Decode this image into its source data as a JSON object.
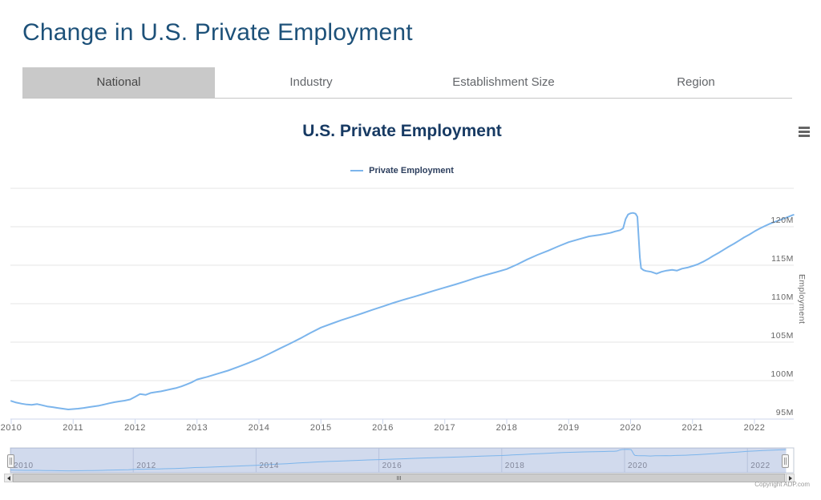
{
  "page": {
    "title": "Change in U.S. Private Employment"
  },
  "tabs": {
    "items": [
      {
        "label": "National",
        "selected": true
      },
      {
        "label": "Industry",
        "selected": false
      },
      {
        "label": "Establishment Size",
        "selected": false
      },
      {
        "label": "Region",
        "selected": false
      }
    ]
  },
  "chart": {
    "title": "U.S. Private Employment",
    "legend": {
      "series_label": "Private Employment"
    },
    "y_axis_title": "Employment",
    "credits": "Copyright ADP.com",
    "icons": {
      "context_menu": "hamburger-icon",
      "scroll_left": "triangle-left-icon",
      "scroll_right": "triangle-right-icon",
      "navigator_handles": "drag-handle-icon"
    }
  },
  "colors": {
    "series": "#7cb5ec",
    "page_title": "#1d5179",
    "chart_title": "#173a63",
    "selected_tab_bg": "#c9c9c9",
    "gridline": "#e6e6e6",
    "axis_line": "#ccd6eb",
    "navigator_mask": "rgba(102,133,194,0.3)"
  },
  "chart_data": {
    "type": "line",
    "title": "U.S. Private Employment",
    "xlabel": "",
    "ylabel": "Employment",
    "unit": "millions of jobs",
    "xlim": [
      2010,
      2022.63
    ],
    "ylim": [
      95,
      125
    ],
    "grid": true,
    "legend_position": "top-center",
    "y_gridlines": [
      95,
      100,
      105,
      110,
      115,
      120,
      125
    ],
    "y_ticks": [
      {
        "value": 95,
        "label": "95M"
      },
      {
        "value": 100,
        "label": "100M"
      },
      {
        "value": 105,
        "label": "105M"
      },
      {
        "value": 110,
        "label": "110M"
      },
      {
        "value": 115,
        "label": "115M"
      },
      {
        "value": 120,
        "label": "120M"
      }
    ],
    "x_ticks": [
      {
        "value": 2010,
        "label": "2010"
      },
      {
        "value": 2011,
        "label": "2011"
      },
      {
        "value": 2012,
        "label": "2012"
      },
      {
        "value": 2013,
        "label": "2013"
      },
      {
        "value": 2014,
        "label": "2014"
      },
      {
        "value": 2015,
        "label": "2015"
      },
      {
        "value": 2016,
        "label": "2016"
      },
      {
        "value": 2017,
        "label": "2017"
      },
      {
        "value": 2018,
        "label": "2018"
      },
      {
        "value": 2019,
        "label": "2019"
      },
      {
        "value": 2020,
        "label": "2020"
      },
      {
        "value": 2021,
        "label": "2021"
      },
      {
        "value": 2022,
        "label": "2022"
      }
    ],
    "navigator_ticks": [
      {
        "value": 2010,
        "label": "2010"
      },
      {
        "value": 2012,
        "label": "2012"
      },
      {
        "value": 2014,
        "label": "2014"
      },
      {
        "value": 2016,
        "label": "2016"
      },
      {
        "value": 2018,
        "label": "2018"
      },
      {
        "value": 2020,
        "label": "2020"
      },
      {
        "value": 2022,
        "label": "2022"
      }
    ],
    "series": [
      {
        "name": "Private Employment",
        "color": "#7cb5ec",
        "points": [
          [
            2010,
            97.35
          ],
          [
            2010.08,
            97.15
          ],
          [
            2010.17,
            97
          ],
          [
            2010.25,
            96.9
          ],
          [
            2010.33,
            96.85
          ],
          [
            2010.42,
            96.95
          ],
          [
            2010.5,
            96.8
          ],
          [
            2010.58,
            96.65
          ],
          [
            2010.67,
            96.55
          ],
          [
            2010.75,
            96.45
          ],
          [
            2010.83,
            96.35
          ],
          [
            2010.92,
            96.25
          ],
          [
            2011,
            96.3
          ],
          [
            2011.08,
            96.35
          ],
          [
            2011.17,
            96.45
          ],
          [
            2011.25,
            96.55
          ],
          [
            2011.33,
            96.65
          ],
          [
            2011.42,
            96.75
          ],
          [
            2011.5,
            96.9
          ],
          [
            2011.58,
            97.05
          ],
          [
            2011.67,
            97.2
          ],
          [
            2011.75,
            97.3
          ],
          [
            2011.83,
            97.4
          ],
          [
            2011.92,
            97.55
          ],
          [
            2012,
            97.9
          ],
          [
            2012.08,
            98.25
          ],
          [
            2012.17,
            98.15
          ],
          [
            2012.25,
            98.4
          ],
          [
            2012.33,
            98.5
          ],
          [
            2012.42,
            98.6
          ],
          [
            2012.5,
            98.75
          ],
          [
            2012.58,
            98.9
          ],
          [
            2012.67,
            99.05
          ],
          [
            2012.75,
            99.25
          ],
          [
            2012.83,
            99.5
          ],
          [
            2012.92,
            99.8
          ],
          [
            2013,
            100.15
          ],
          [
            2013.17,
            100.5
          ],
          [
            2013.33,
            100.9
          ],
          [
            2013.5,
            101.3
          ],
          [
            2013.67,
            101.8
          ],
          [
            2013.83,
            102.3
          ],
          [
            2014,
            102.85
          ],
          [
            2014.17,
            103.5
          ],
          [
            2014.33,
            104.15
          ],
          [
            2014.5,
            104.8
          ],
          [
            2014.67,
            105.5
          ],
          [
            2014.83,
            106.2
          ],
          [
            2015,
            106.9
          ],
          [
            2015.17,
            107.4
          ],
          [
            2015.33,
            107.85
          ],
          [
            2015.5,
            108.3
          ],
          [
            2015.67,
            108.75
          ],
          [
            2015.83,
            109.2
          ],
          [
            2016,
            109.65
          ],
          [
            2016.17,
            110.1
          ],
          [
            2016.33,
            110.5
          ],
          [
            2016.5,
            110.9
          ],
          [
            2016.67,
            111.3
          ],
          [
            2016.83,
            111.7
          ],
          [
            2017,
            112.1
          ],
          [
            2017.17,
            112.5
          ],
          [
            2017.33,
            112.9
          ],
          [
            2017.5,
            113.35
          ],
          [
            2017.67,
            113.75
          ],
          [
            2017.83,
            114.1
          ],
          [
            2018,
            114.5
          ],
          [
            2018.17,
            115.1
          ],
          [
            2018.33,
            115.75
          ],
          [
            2018.5,
            116.35
          ],
          [
            2018.67,
            116.9
          ],
          [
            2018.83,
            117.45
          ],
          [
            2019,
            118
          ],
          [
            2019.17,
            118.4
          ],
          [
            2019.33,
            118.75
          ],
          [
            2019.5,
            118.95
          ],
          [
            2019.67,
            119.2
          ],
          [
            2019.75,
            119.4
          ],
          [
            2019.83,
            119.55
          ],
          [
            2019.88,
            119.8
          ],
          [
            2019.92,
            121
          ],
          [
            2019.96,
            121.6
          ],
          [
            2020,
            121.75
          ],
          [
            2020.04,
            121.8
          ],
          [
            2020.08,
            121.7
          ],
          [
            2020.11,
            121.3
          ],
          [
            2020.15,
            116
          ],
          [
            2020.17,
            114.6
          ],
          [
            2020.21,
            114.35
          ],
          [
            2020.25,
            114.25
          ],
          [
            2020.33,
            114.15
          ],
          [
            2020.42,
            113.9
          ],
          [
            2020.5,
            114.15
          ],
          [
            2020.58,
            114.3
          ],
          [
            2020.67,
            114.4
          ],
          [
            2020.75,
            114.3
          ],
          [
            2020.83,
            114.55
          ],
          [
            2020.92,
            114.7
          ],
          [
            2021,
            114.9
          ],
          [
            2021.08,
            115.1
          ],
          [
            2021.17,
            115.45
          ],
          [
            2021.25,
            115.8
          ],
          [
            2021.33,
            116.2
          ],
          [
            2021.42,
            116.6
          ],
          [
            2021.5,
            117
          ],
          [
            2021.58,
            117.4
          ],
          [
            2021.67,
            117.8
          ],
          [
            2021.75,
            118.2
          ],
          [
            2021.83,
            118.6
          ],
          [
            2021.92,
            119
          ],
          [
            2022,
            119.4
          ],
          [
            2022.08,
            119.75
          ],
          [
            2022.17,
            120.1
          ],
          [
            2022.25,
            120.4
          ],
          [
            2022.33,
            120.65
          ],
          [
            2022.42,
            120.9
          ],
          [
            2022.5,
            121.15
          ],
          [
            2022.58,
            121.4
          ],
          [
            2022.63,
            121.55
          ]
        ]
      }
    ]
  }
}
